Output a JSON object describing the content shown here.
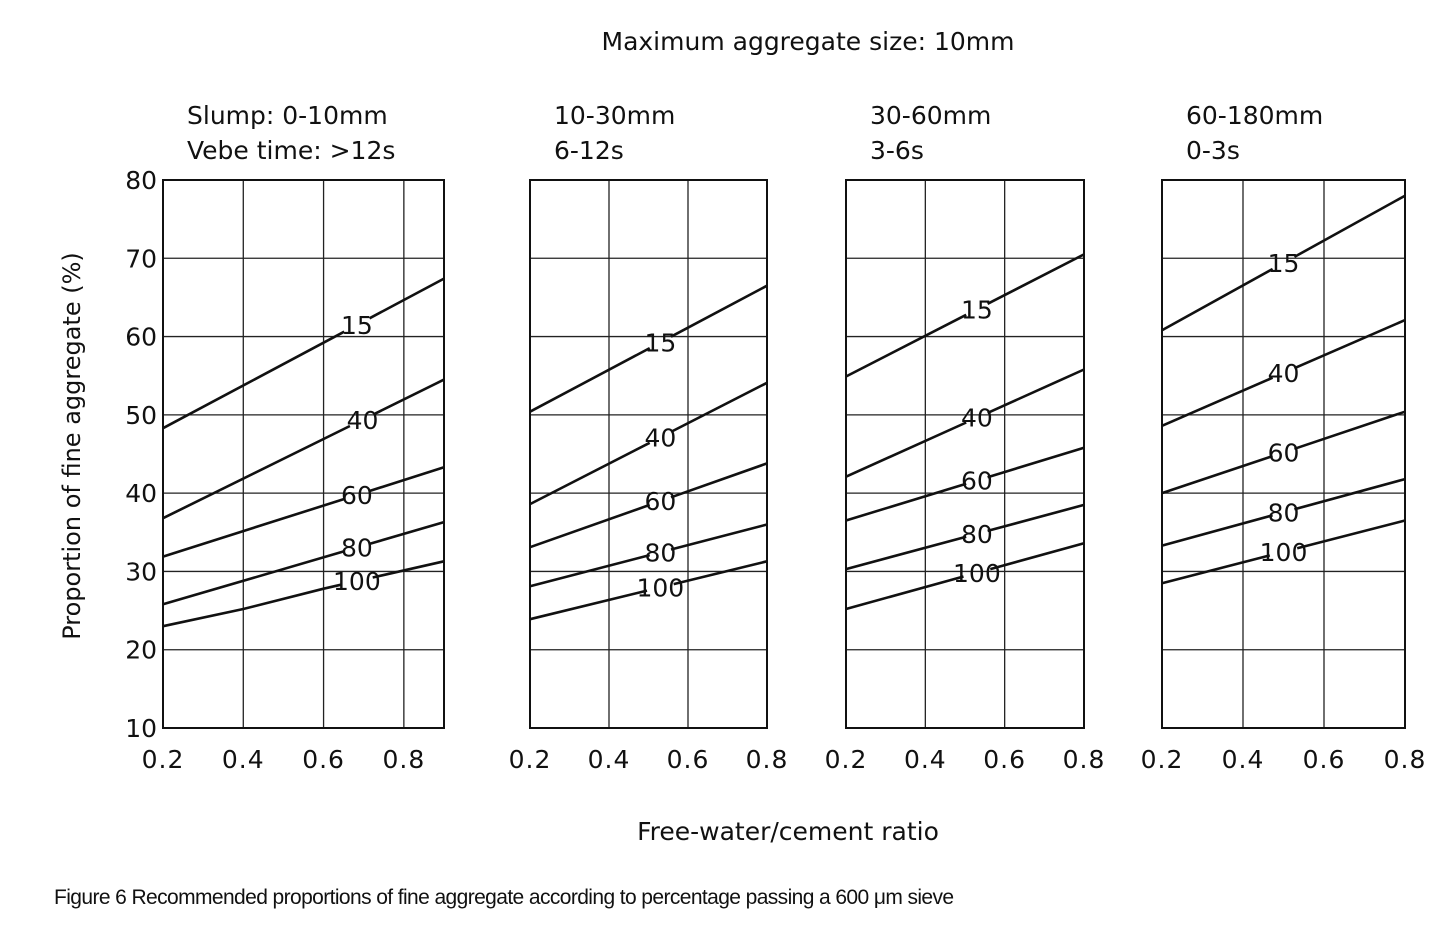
{
  "title": "Maximum aggregate size: 10mm",
  "xlabel": "Free-water/cement ratio",
  "ylabel": "Proportion of fine aggregate (%)",
  "caption": "Figure 6  Recommended proportions of fine aggregate according to percentage passing a 600 μm sieve",
  "chart_data": [
    {
      "type": "line",
      "header_line1": "Slump: 0-10mm",
      "header_line2": "Vebe time: >12s",
      "xlim": [
        0.2,
        0.9
      ],
      "ylim": [
        10,
        80
      ],
      "x_ticks": [
        "0.2",
        "0.4",
        "0.6",
        "0.8"
      ],
      "y_ticks": [
        "10",
        "20",
        "30",
        "40",
        "50",
        "60",
        "70",
        "80"
      ],
      "grid": true,
      "series": [
        {
          "name": "15",
          "x": [
            0.2,
            0.9
          ],
          "y": [
            48.3,
            67.4
          ]
        },
        {
          "name": "40",
          "x": [
            0.2,
            0.9
          ],
          "y": [
            36.8,
            54.5
          ]
        },
        {
          "name": "60",
          "x": [
            0.2,
            0.9
          ],
          "y": [
            31.9,
            43.3
          ]
        },
        {
          "name": "80",
          "x": [
            0.2,
            0.9
          ],
          "y": [
            25.8,
            36.3
          ]
        },
        {
          "name": "100",
          "x": [
            0.2,
            0.4,
            0.6,
            0.9
          ],
          "y": [
            23.0,
            25.2,
            27.8,
            31.3
          ]
        }
      ]
    },
    {
      "type": "line",
      "header_line1": "10-30mm",
      "header_line2": "6-12s",
      "xlim": [
        0.2,
        0.8
      ],
      "ylim": [
        10,
        80
      ],
      "x_ticks": [
        "0.2",
        "0.4",
        "0.6",
        "0.8"
      ],
      "grid": true,
      "series": [
        {
          "name": "15",
          "x": [
            0.2,
            0.8
          ],
          "y": [
            50.4,
            66.5
          ]
        },
        {
          "name": "40",
          "x": [
            0.2,
            0.8
          ],
          "y": [
            38.6,
            54.1
          ]
        },
        {
          "name": "60",
          "x": [
            0.2,
            0.8
          ],
          "y": [
            33.1,
            43.8
          ]
        },
        {
          "name": "80",
          "x": [
            0.2,
            0.8
          ],
          "y": [
            28.1,
            36.0
          ]
        },
        {
          "name": "100",
          "x": [
            0.2,
            0.8
          ],
          "y": [
            23.9,
            31.3
          ]
        }
      ]
    },
    {
      "type": "line",
      "header_line1": "30-60mm",
      "header_line2": "3-6s",
      "xlim": [
        0.2,
        0.8
      ],
      "ylim": [
        10,
        80
      ],
      "x_ticks": [
        "0.2",
        "0.4",
        "0.6",
        "0.8"
      ],
      "grid": true,
      "series": [
        {
          "name": "15",
          "x": [
            0.2,
            0.8
          ],
          "y": [
            54.9,
            70.5
          ]
        },
        {
          "name": "40",
          "x": [
            0.2,
            0.8
          ],
          "y": [
            42.1,
            55.8
          ]
        },
        {
          "name": "60",
          "x": [
            0.2,
            0.8
          ],
          "y": [
            36.5,
            45.8
          ]
        },
        {
          "name": "80",
          "x": [
            0.2,
            0.8
          ],
          "y": [
            30.3,
            38.5
          ]
        },
        {
          "name": "100",
          "x": [
            0.2,
            0.8
          ],
          "y": [
            25.2,
            33.6
          ]
        }
      ]
    },
    {
      "type": "line",
      "header_line1": "60-180mm",
      "header_line2": "0-3s",
      "xlim": [
        0.2,
        0.8
      ],
      "ylim": [
        10,
        80
      ],
      "x_ticks": [
        "0.2",
        "0.4",
        "0.6",
        "0.8"
      ],
      "grid": true,
      "series": [
        {
          "name": "15",
          "x": [
            0.2,
            0.8
          ],
          "y": [
            60.8,
            78.0
          ]
        },
        {
          "name": "40",
          "x": [
            0.2,
            0.8
          ],
          "y": [
            48.6,
            62.1
          ]
        },
        {
          "name": "60",
          "x": [
            0.2,
            0.8
          ],
          "y": [
            40.0,
            50.4
          ]
        },
        {
          "name": "80",
          "x": [
            0.2,
            0.8
          ],
          "y": [
            33.3,
            41.8
          ]
        },
        {
          "name": "100",
          "x": [
            0.2,
            0.8
          ],
          "y": [
            28.5,
            36.5
          ]
        }
      ]
    }
  ]
}
